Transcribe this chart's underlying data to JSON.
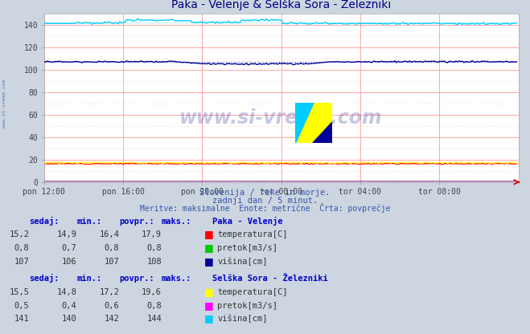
{
  "title": "Paka - Velenje & Selška Sora - Železniki",
  "bg_color": "#ccd5e0",
  "plot_bg_color": "#ffffff",
  "grid_color_major": "#ff9999",
  "grid_color_minor": "#ffcccc",
  "xlim": [
    0,
    288
  ],
  "ylim": [
    0,
    150
  ],
  "yticks": [
    0,
    20,
    40,
    60,
    80,
    100,
    120,
    140
  ],
  "xtick_labels": [
    "pon 12:00",
    "pon 16:00",
    "pon 20:00",
    "tor 00:00",
    "tor 04:00",
    "tor 08:00"
  ],
  "xtick_positions": [
    0,
    48,
    96,
    144,
    192,
    240
  ],
  "watermark": "www.si-vreme.com",
  "subtitle1": "Slovenija / reke in morje.",
  "subtitle2": "zadnji dan / 5 minut.",
  "subtitle3": "Meritve: maksimalne  Enote: metrične  Črta: povprečje",
  "station1_name": "Paka - Velenje",
  "station1_sedaj": "15,2",
  "station1_min": "14,9",
  "station1_povpr": "16,4",
  "station1_maks": "17,9",
  "station1_sedaj2": "0,8",
  "station1_min2": "0,7",
  "station1_povpr2": "0,8",
  "station1_maks2": "0,8",
  "station1_sedaj3": "107",
  "station1_min3": "106",
  "station1_povpr3": "107",
  "station1_maks3": "108",
  "station2_name": "Selška Sora - Železniki",
  "station2_sedaj": "15,5",
  "station2_min": "14,8",
  "station2_povpr": "17,2",
  "station2_maks": "19,6",
  "station2_sedaj2": "0,5",
  "station2_min2": "0,4",
  "station2_povpr2": "0,6",
  "station2_maks2": "0,8",
  "station2_sedaj3": "141",
  "station2_min3": "140",
  "station2_povpr3": "142",
  "station2_maks3": "144",
  "colors": {
    "temp_paka": "#ff0000",
    "pretok_paka": "#00cc00",
    "visina_paka": "#000099",
    "temp_selska": "#ffff00",
    "pretok_selska": "#ff00ff",
    "visina_selska": "#00ccff"
  },
  "n_points": 288,
  "temp_paka_base": 16.4,
  "visina_paka_base": 107.0,
  "temp_selska_base": 17.2,
  "visina_selska_base": 142.0,
  "pretok_paka_base": 0.8,
  "pretok_selska_base": 0.6
}
